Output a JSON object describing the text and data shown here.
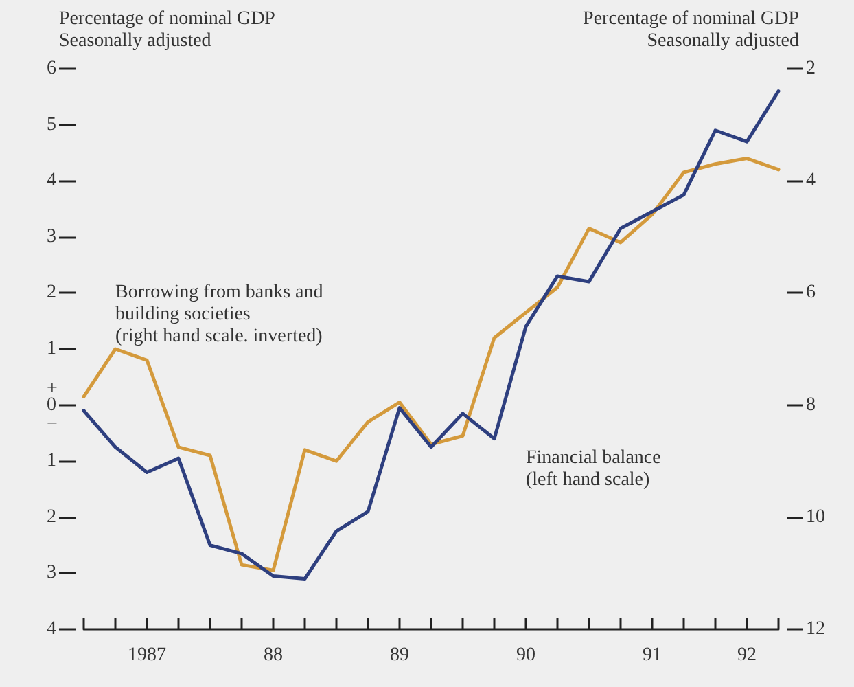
{
  "chart_data": {
    "type": "line",
    "ylabel": "Percentage of nominal GDP\nSeasonally adjusted",
    "y2label": "Percentage of nominal GDP\nSeasonally adjusted",
    "categories": [
      null,
      null,
      "1987",
      null,
      null,
      null,
      "88",
      null,
      null,
      null,
      "89",
      null,
      null,
      null,
      "90",
      null,
      null,
      null,
      "91",
      null,
      null,
      "92",
      null
    ],
    "ylim": [
      -4,
      6
    ],
    "yticks": [
      {
        "value": -4,
        "label": "4"
      },
      {
        "value": -3,
        "label": "3"
      },
      {
        "value": -2,
        "label": "2"
      },
      {
        "value": -1,
        "label": "1"
      },
      {
        "value": 0,
        "label": "0"
      },
      1,
      2,
      3,
      4,
      5,
      6
    ],
    "y2lim": [
      12,
      2
    ],
    "y2ticks": [
      2,
      4,
      6,
      8,
      10,
      12
    ],
    "annotations": [
      "+",
      "−"
    ],
    "grid": false,
    "legend": false,
    "marker": "none",
    "line_style": "solid",
    "series": [
      {
        "name": "Borrowing from banks and\nbuilding societies\n(right hand scale. inverted)",
        "color": "#d49a3c",
        "axis": "y2",
        "values": [
          7.85,
          7.0,
          7.2,
          8.75,
          8.9,
          10.85,
          10.95,
          8.8,
          9.0,
          8.3,
          7.95,
          8.7,
          8.55,
          6.8,
          6.35,
          5.9,
          4.85,
          5.1,
          4.6,
          3.85,
          3.7,
          3.6,
          3.8
        ]
      },
      {
        "name": "Financial balance\n(left hand scale)",
        "color": "#2e3f7f",
        "axis": "y",
        "values": [
          -0.1,
          -0.75,
          -1.2,
          -0.95,
          -2.5,
          -2.65,
          -3.05,
          -3.1,
          -2.25,
          -1.9,
          -0.05,
          -0.75,
          -0.15,
          -0.6,
          1.4,
          2.3,
          2.2,
          3.15,
          3.45,
          3.75,
          4.9,
          4.7,
          5.6
        ]
      }
    ]
  }
}
